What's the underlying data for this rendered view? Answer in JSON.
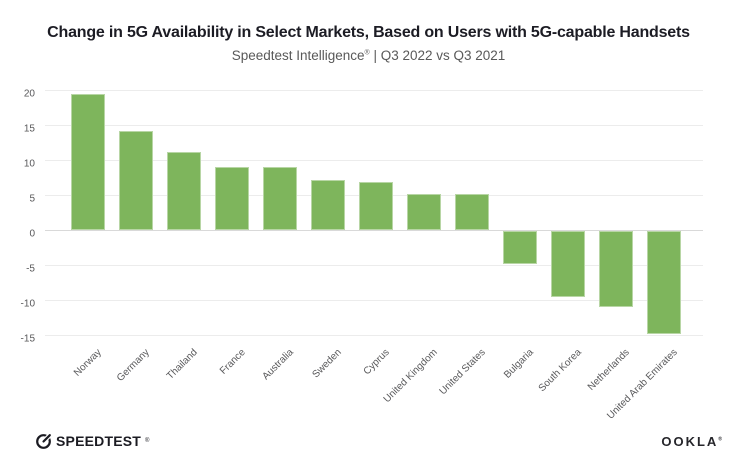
{
  "chart_data": {
    "type": "bar",
    "title": "Change in 5G Availability in Select Markets, Based on Users with 5G-capable Handsets",
    "subtitle": "Speedtest Intelligence® | Q3 2022 vs Q3 2021",
    "subtitle_parts": {
      "brand": "Speedtest Intelligence",
      "registered_mark": "®",
      "tail": " | Q3 2022 vs Q3 2021"
    },
    "categories": [
      "Norway",
      "Germany",
      "Thailand",
      "France",
      "Australia",
      "Sweden",
      "Cyprus",
      "United Kingdom",
      "United States",
      "Bulgaria",
      "South Korea",
      "Netherlands",
      "United Arab Emirates"
    ],
    "values": [
      19.5,
      14.1,
      11.2,
      9.0,
      9.0,
      7.1,
      6.9,
      5.2,
      5.2,
      -4.7,
      -9.4,
      -10.9,
      -14.7
    ],
    "xlabel": "",
    "ylabel": "",
    "ylim": [
      -15,
      20
    ],
    "yticks": [
      20,
      15,
      10,
      5,
      0,
      -5,
      -10,
      -15
    ],
    "grid": true,
    "legend": false,
    "x_tick_rotation_deg": 45,
    "bar_color": "#7eb55c"
  },
  "colors": {
    "title": "#1c1c24",
    "subtitle": "#595959",
    "axis_text": "#58585a",
    "gridline": "#ececec",
    "zero_line": "#d9d9d9",
    "background": "#ffffff"
  },
  "footer": {
    "speedtest_label": "SPEEDTEST",
    "speedtest_mark": "®",
    "ookla_label": "OOKLA",
    "ookla_mark": "®"
  }
}
